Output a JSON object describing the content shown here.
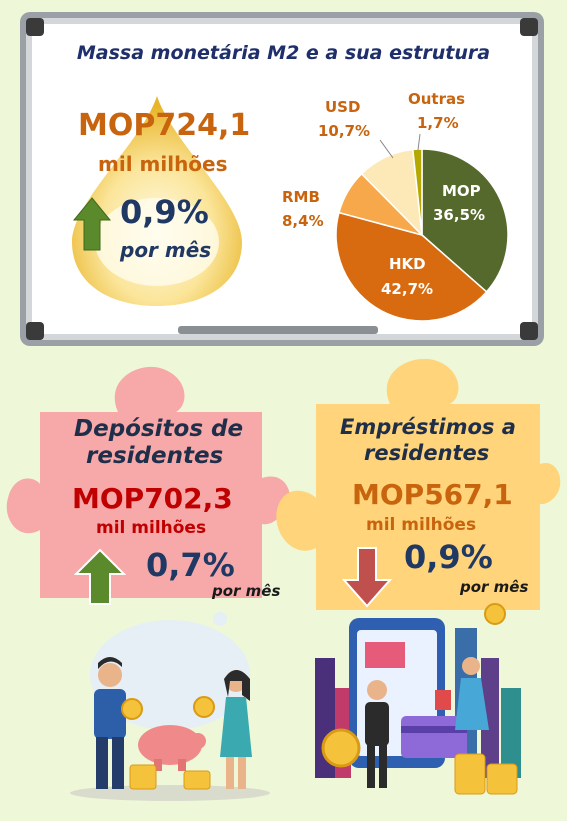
{
  "colors": {
    "background": "#eef8d8",
    "board_frame": "#b8bcc0",
    "board_surface": "#ffffff",
    "title_blue": "#1f2f6b",
    "orange_text": "#c8640e",
    "dark_red_text": "#c00000",
    "navy_number": "#1f3864",
    "pink_puzzle": "#f7a8a8",
    "yellow_puzzle": "#ffd47a",
    "arrow_up": "#5a8a2c",
    "arrow_down": "#c0504d",
    "pie_mop": "#55692c",
    "pie_hkd": "#d86b10",
    "pie_rmb": "#f6a84b",
    "pie_usd": "#fde9b8",
    "pie_outras": "#b5a800"
  },
  "board": {
    "title": "Massa monetária M2 e a sua estrutura",
    "amount": "MOP724,1",
    "unit": "mil milhões",
    "growth": "0,9%",
    "period": "por mês",
    "arrow": "up-arrow-icon"
  },
  "chart_data": {
    "type": "pie",
    "slices": [
      {
        "name": "MOP",
        "value": 36.5,
        "label": "36,5%"
      },
      {
        "name": "HKD",
        "value": 42.7,
        "label": "42,7%"
      },
      {
        "name": "RMB",
        "value": 8.4,
        "label": "8,4%"
      },
      {
        "name": "USD",
        "value": 10.7,
        "label": "10,7%"
      },
      {
        "name": "Outras",
        "value": 1.7,
        "label": "1,7%"
      }
    ]
  },
  "deposits": {
    "title_line1": "Depósitos de",
    "title_line2": "residentes",
    "amount": "MOP702,3",
    "unit": "mil milhões",
    "growth": "0,7%",
    "period": "por mês",
    "arrow": "up-arrow-icon",
    "illustration": "people-saving-coins-illustration"
  },
  "loans": {
    "title_line1": "Empréstimos a",
    "title_line2": "residentes",
    "amount": "MOP567,1",
    "unit": "mil milhões",
    "growth": "0,9%",
    "period": "por mês",
    "arrow": "down-arrow-icon",
    "illustration": "city-mobile-payment-illustration"
  }
}
